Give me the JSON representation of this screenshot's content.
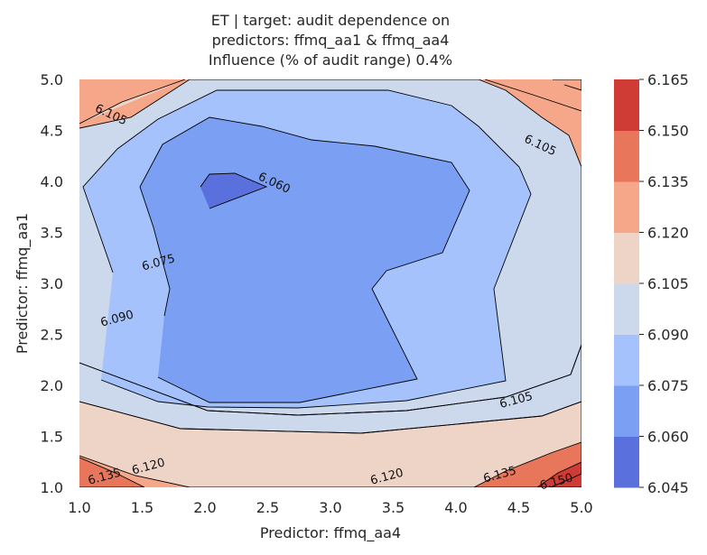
{
  "chart_data": {
    "type": "contour",
    "title_lines": [
      "ET | target: audit dependence on",
      "predictors: ffmq_aa1 & ffmq_aa4",
      "Influence (% of audit range) 0.4%"
    ],
    "xlabel": "Predictor: ffmq_aa4",
    "ylabel": "Predictor: ffmq_aa1",
    "xlim": [
      1.0,
      5.0
    ],
    "ylim": [
      1.0,
      5.0
    ],
    "xticks": [
      "1.0",
      "1.5",
      "2.0",
      "2.5",
      "3.0",
      "3.5",
      "4.0",
      "4.5",
      "5.0"
    ],
    "yticks": [
      "1.0",
      "1.5",
      "2.0",
      "2.5",
      "3.0",
      "3.5",
      "4.0",
      "4.5",
      "5.0"
    ],
    "levels": [
      6.045,
      6.06,
      6.075,
      6.09,
      6.105,
      6.12,
      6.135,
      6.15,
      6.165
    ],
    "colorbar_ticks": [
      "6.045",
      "6.060",
      "6.075",
      "6.090",
      "6.105",
      "6.120",
      "6.135",
      "6.150",
      "6.165"
    ],
    "colors": [
      "#5a70dc",
      "#7b9ff2",
      "#a5c2fc",
      "#ccd9ed",
      "#eed4c6",
      "#f6a789",
      "#e8765a",
      "#cf3b35"
    ],
    "contour_labels": [
      {
        "text": "6.105",
        "x": 1.25,
        "y": 4.65
      },
      {
        "text": "6.105",
        "x": 4.67,
        "y": 4.35
      },
      {
        "text": "6.060",
        "x": 2.55,
        "y": 3.98
      },
      {
        "text": "6.075",
        "x": 1.63,
        "y": 3.2
      },
      {
        "text": "6.090",
        "x": 1.3,
        "y": 2.65
      },
      {
        "text": "6.105",
        "x": 4.48,
        "y": 1.85
      },
      {
        "text": "6.120",
        "x": 1.55,
        "y": 1.2
      },
      {
        "text": "6.135",
        "x": 1.2,
        "y": 1.1
      },
      {
        "text": "6.120",
        "x": 3.45,
        "y": 1.1
      },
      {
        "text": "6.135",
        "x": 4.35,
        "y": 1.12
      },
      {
        "text": "6.150",
        "x": 4.8,
        "y": 1.05
      }
    ]
  }
}
